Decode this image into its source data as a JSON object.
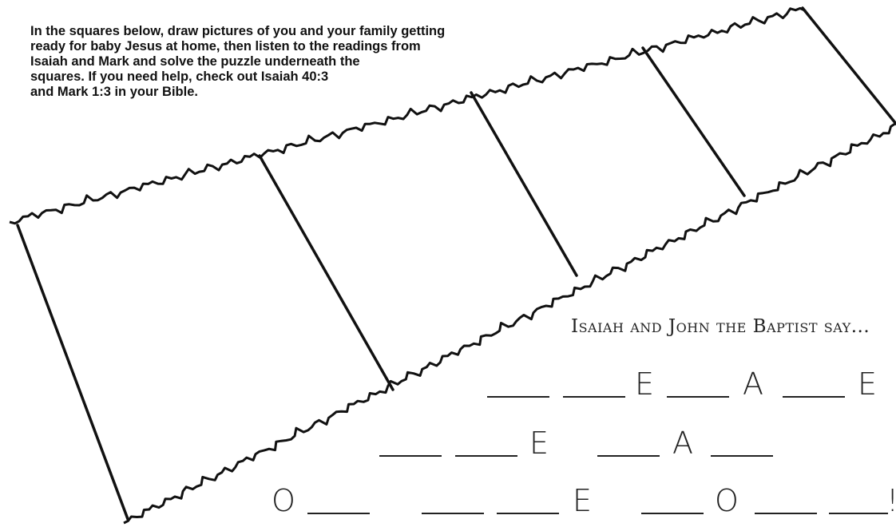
{
  "instructions": [
    "In the squares below, draw pictures of you and your family getting",
    "ready for baby Jesus at home, then listen to the readings from",
    "Isaiah and Mark and solve the puzzle underneath the",
    "squares. If you need help, check out Isaiah 40:3",
    "and Mark 1:3 in your Bible."
  ],
  "puzzle": {
    "heading": "Isaiah and John the Baptist say...",
    "rows": [
      [
        "E",
        "A",
        "E"
      ],
      [
        "E",
        "A"
      ],
      [
        "O",
        "E",
        "O",
        "!"
      ]
    ]
  }
}
